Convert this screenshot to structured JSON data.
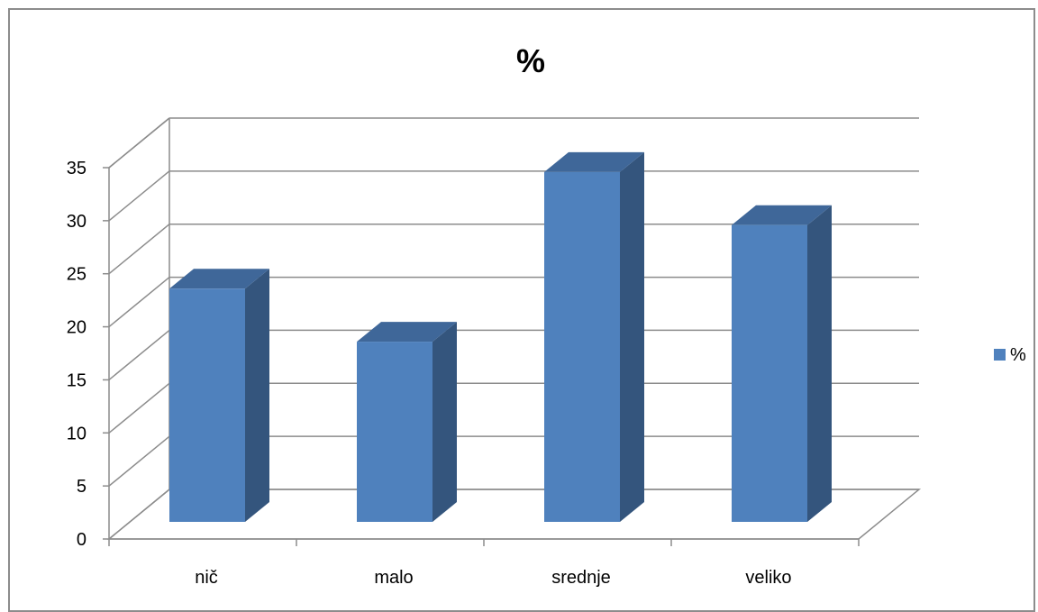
{
  "chart_data": {
    "type": "bar",
    "title": "%",
    "categories": [
      "nič",
      "malo",
      "srednje",
      "veliko"
    ],
    "series": [
      {
        "name": "%",
        "values": [
          22,
          17,
          33,
          28
        ]
      }
    ],
    "ylim": [
      0,
      35
    ],
    "yticks": [
      "0",
      "5",
      "10",
      "15",
      "20",
      "25",
      "30",
      "35"
    ],
    "xlabel": "",
    "ylabel": "",
    "grid": true,
    "three_d": true,
    "legend_position": "right",
    "colors": {
      "bar_front": "#4f81bd",
      "bar_side": "#34557d",
      "bar_top": "#3f6799",
      "grid": "#8c8c8c"
    }
  }
}
